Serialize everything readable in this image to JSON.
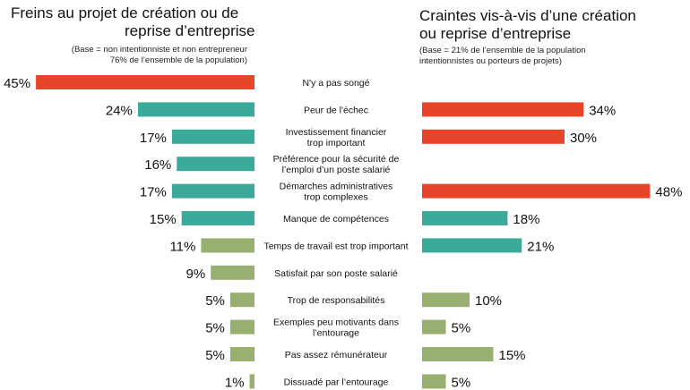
{
  "chart_data": [
    {
      "type": "bar",
      "title_lines": [
        "Freins au projet de création ou de",
        "reprise d’entreprise"
      ],
      "base_lines": [
        "(Base = non intentionniste et non entrepreneur",
        "76% de l’ensemble de la population)"
      ],
      "values": [
        45,
        24,
        17,
        16,
        17,
        15,
        11,
        9,
        5,
        5,
        5,
        1
      ],
      "value_labels": [
        "45%",
        "24%",
        "17%",
        "16%",
        "17%",
        "15%",
        "11%",
        "9%",
        "5%",
        "5%",
        "5%",
        "1%"
      ],
      "bar_colors": [
        "#e8442a",
        "#3aaa9a",
        "#3aaa9a",
        "#3aaa9a",
        "#3aaa9a",
        "#3aaa9a",
        "#97b06f",
        "#97b06f",
        "#97b06f",
        "#97b06f",
        "#97b06f",
        "#97b06f"
      ]
    },
    {
      "type": "bar",
      "title_lines": [
        "Craintes vis-à-vis d’une création",
        "ou reprise d’entreprise"
      ],
      "base_lines": [
        "(Base = 21% de l’ensemble de la population",
        "intentionnistes ou porteurs de projets)"
      ],
      "values": [
        null,
        34,
        30,
        null,
        48,
        18,
        21,
        null,
        10,
        5,
        15,
        5
      ],
      "value_labels": [
        "",
        "34%",
        "30%",
        "",
        "48%",
        "18%",
        "21%",
        "",
        "10%",
        "5%",
        "15%",
        "5%"
      ],
      "bar_colors": [
        "",
        "#e8442a",
        "#e8442a",
        "",
        "#e8442a",
        "#3aaa9a",
        "#3aaa9a",
        "",
        "#97b06f",
        "#97b06f",
        "#97b06f",
        "#97b06f"
      ]
    }
  ],
  "categories": [
    [
      "N'y a pas songé"
    ],
    [
      "Peur de l'échec"
    ],
    [
      "Investissement  financier",
      "trop important"
    ],
    [
      "Préférence pour la sécurité de",
      "l’emploi d’un poste salarié"
    ],
    [
      "Démarches administratives",
      "trop complexes"
    ],
    [
      "Manque de compétences"
    ],
    [
      "Temps de travail est trop important"
    ],
    [
      "Satisfait par son poste salarié"
    ],
    [
      "Trop de responsabilités"
    ],
    [
      "Exemples peu motivants dans",
      "l’entourage"
    ],
    [
      "Pas assez rémunérateur"
    ],
    [
      "Dissuadé par l’entourage"
    ]
  ],
  "colors": {
    "red": "#e8442a",
    "teal": "#3aaa9a",
    "green": "#97b06f"
  }
}
